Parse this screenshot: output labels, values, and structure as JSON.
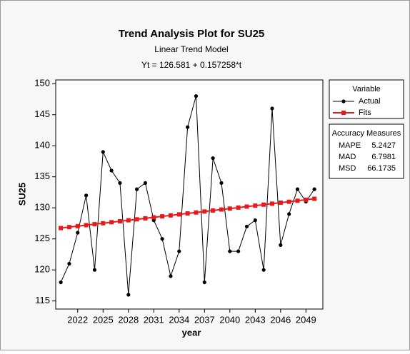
{
  "chart_data": {
    "type": "line",
    "title": "Trend Analysis Plot for SU25",
    "subtitle": "Linear Trend Model",
    "equation": "Yt = 126.581 + 0.157258*t",
    "x_label": "year",
    "y_label": "SU25",
    "x": [
      2020,
      2021,
      2022,
      2023,
      2024,
      2025,
      2026,
      2027,
      2028,
      2029,
      2030,
      2031,
      2032,
      2033,
      2034,
      2035,
      2036,
      2037,
      2038,
      2039,
      2040,
      2041,
      2042,
      2043,
      2044,
      2045,
      2046,
      2047,
      2048,
      2049,
      2050
    ],
    "series": [
      {
        "name": "Actual",
        "color": "#000000",
        "marker": "circle",
        "values": [
          118,
          121,
          126,
          132,
          120,
          139,
          136,
          134,
          116,
          133,
          134,
          128,
          125,
          119,
          123,
          143,
          148,
          118,
          138,
          134,
          123,
          123,
          127,
          128,
          120,
          146,
          124,
          129,
          133,
          131,
          133
        ]
      },
      {
        "name": "Fits",
        "color": "#e8191b",
        "marker": "square",
        "values": [
          126.74,
          126.9,
          127.05,
          127.21,
          127.37,
          127.52,
          127.68,
          127.84,
          128.0,
          128.15,
          128.31,
          128.47,
          128.63,
          128.78,
          128.94,
          129.1,
          129.25,
          129.41,
          129.57,
          129.73,
          129.88,
          130.04,
          130.2,
          130.36,
          130.51,
          130.67,
          130.83,
          130.98,
          131.14,
          131.3,
          131.46
        ]
      }
    ],
    "xlim": [
      2019.4,
      2051
    ],
    "xticks": [
      2022,
      2025,
      2028,
      2031,
      2034,
      2037,
      2040,
      2043,
      2046,
      2049
    ],
    "ylim": [
      113.7,
      150.6
    ],
    "yticks": [
      115,
      120,
      125,
      130,
      135,
      140,
      145,
      150
    ],
    "legend_title": "Variable",
    "legend": "right",
    "accuracy": {
      "title": "Accuracy Measures",
      "rows": [
        [
          "MAPE",
          5.2427
        ],
        [
          "MAD",
          6.7981
        ],
        [
          "MSD",
          66.1735
        ]
      ]
    }
  }
}
